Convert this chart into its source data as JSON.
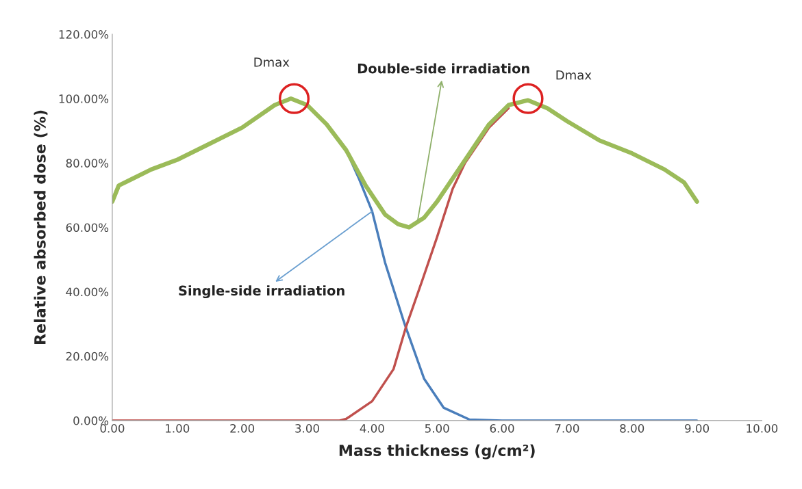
{
  "chart_data": {
    "type": "line",
    "xlabel": "Mass thickness (g/cm²)",
    "ylabel": "Relative absorbed dose (%)",
    "series": [
      {
        "color": "#4a7ebb",
        "x": [
          3.6,
          3.8,
          4.0,
          4.2,
          4.5,
          4.8,
          5.1,
          5.5,
          6.0,
          9.0
        ],
        "values": [
          84,
          75,
          65,
          49,
          30,
          13,
          4,
          0.3,
          0,
          0
        ]
      },
      {
        "color": "#c0504d",
        "x": [
          0,
          3.0,
          3.5,
          3.6,
          4.0,
          4.33,
          4.52,
          4.78,
          5.0,
          5.24,
          5.43,
          5.8,
          6.1
        ],
        "values": [
          0,
          0,
          0,
          0.5,
          6,
          16,
          29,
          44,
          57,
          72,
          80,
          91,
          97
        ]
      },
      {
        "color": "#9bbb59",
        "x": [
          0,
          0.1,
          0.3,
          0.6,
          1.0,
          1.5,
          2.0,
          2.5,
          2.75,
          3.0,
          3.3,
          3.6,
          3.9,
          4.0,
          4.2,
          4.4,
          4.57,
          4.8,
          5.0,
          5.2,
          5.5,
          5.8,
          6.1,
          6.4,
          6.7,
          7.0,
          7.5,
          8.0,
          8.5,
          8.8,
          9.0
        ],
        "values": [
          68,
          73,
          75,
          78,
          81,
          86,
          91,
          98,
          100,
          98,
          92,
          84,
          73,
          70,
          64,
          61,
          60,
          63,
          68,
          74,
          83,
          92,
          98,
          99.5,
          97,
          93,
          87,
          83,
          78,
          74,
          68
        ]
      }
    ],
    "xlim": [
      0,
      10
    ],
    "ylim": [
      0,
      120
    ],
    "xticks": [
      {
        "value": 0,
        "label": "0.00"
      },
      {
        "value": 1,
        "label": "1.00"
      },
      {
        "value": 2,
        "label": "2.00"
      },
      {
        "value": 3,
        "label": "3.00"
      },
      {
        "value": 4,
        "label": "4.00"
      },
      {
        "value": 5,
        "label": "5.00"
      },
      {
        "value": 6,
        "label": "6.00"
      },
      {
        "value": 7,
        "label": "7.00"
      },
      {
        "value": 8,
        "label": "8.00"
      },
      {
        "value": 9,
        "label": "9.00"
      },
      {
        "value": 10,
        "label": "10.00"
      }
    ],
    "yticks": [
      {
        "value": 0,
        "label": "0.00%"
      },
      {
        "value": 20,
        "label": "20.00%"
      },
      {
        "value": 40,
        "label": "40.00%"
      },
      {
        "value": 60,
        "label": "60.00%"
      },
      {
        "value": 80,
        "label": "80.00%"
      },
      {
        "value": 100,
        "label": "100.00%"
      },
      {
        "value": 120,
        "label": "120.00%"
      }
    ],
    "annotations": [
      {
        "text": "Dmax",
        "x": 2.8,
        "y": 100
      },
      {
        "text": "Dmax",
        "x": 6.4,
        "y": 100
      },
      {
        "text": "Double-side irradiation",
        "x": 4.7,
        "y": 62
      },
      {
        "text": "Single-side irradiation",
        "x": 4.0,
        "y": 65
      }
    ],
    "grid": false,
    "marker": "none",
    "line_style": "solid"
  }
}
